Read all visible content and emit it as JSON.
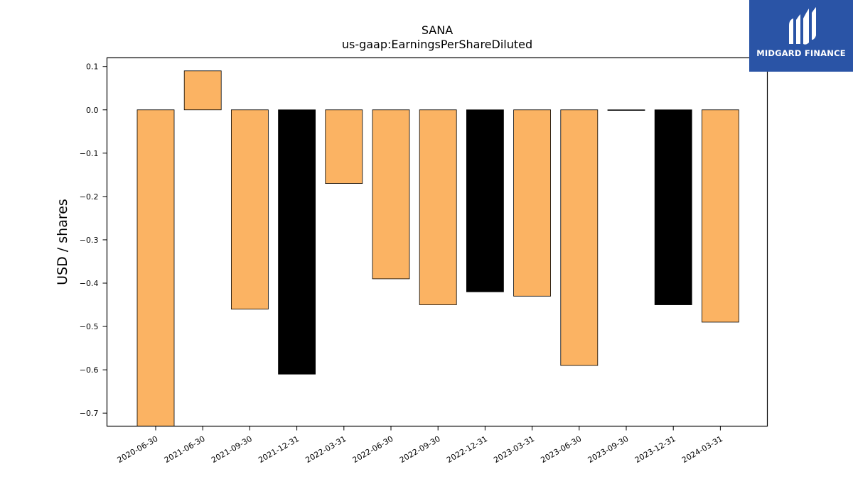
{
  "chart_data": {
    "type": "bar",
    "title": "SANA",
    "subtitle": "us-gaap:EarningsPerShareDiluted",
    "xlabel": "",
    "ylabel": "USD / shares",
    "ylim": [
      -0.73,
      0.12
    ],
    "yticks": [
      0.1,
      0.0,
      -0.1,
      -0.2,
      -0.3,
      -0.4,
      -0.5,
      -0.6,
      -0.7
    ],
    "ytick_labels": [
      "0.1",
      "0.0",
      "−0.1",
      "−0.2",
      "−0.3",
      "−0.4",
      "−0.5",
      "−0.6",
      "−0.7"
    ],
    "categories": [
      "2020-06-30",
      "2021-06-30",
      "2021-09-30",
      "2021-12-31",
      "2022-03-31",
      "2022-06-30",
      "2022-09-30",
      "2022-12-31",
      "2023-03-31",
      "2023-06-30",
      "2023-09-30",
      "2023-12-31",
      "2024-03-31"
    ],
    "values": [
      -0.73,
      0.09,
      -0.46,
      -0.61,
      -0.17,
      -0.39,
      -0.45,
      -0.42,
      -0.43,
      -0.59,
      0.0,
      -0.45,
      -0.49
    ],
    "bar_colors": [
      "#fbb363",
      "#fbb363",
      "#fbb363",
      "#000000",
      "#fbb363",
      "#fbb363",
      "#fbb363",
      "#000000",
      "#fbb363",
      "#fbb363",
      "#000000",
      "#000000",
      "#fbb363"
    ],
    "grid": false
  },
  "logo": {
    "text": "MIDGARD FINANCE",
    "background": "#2a54a6"
  }
}
